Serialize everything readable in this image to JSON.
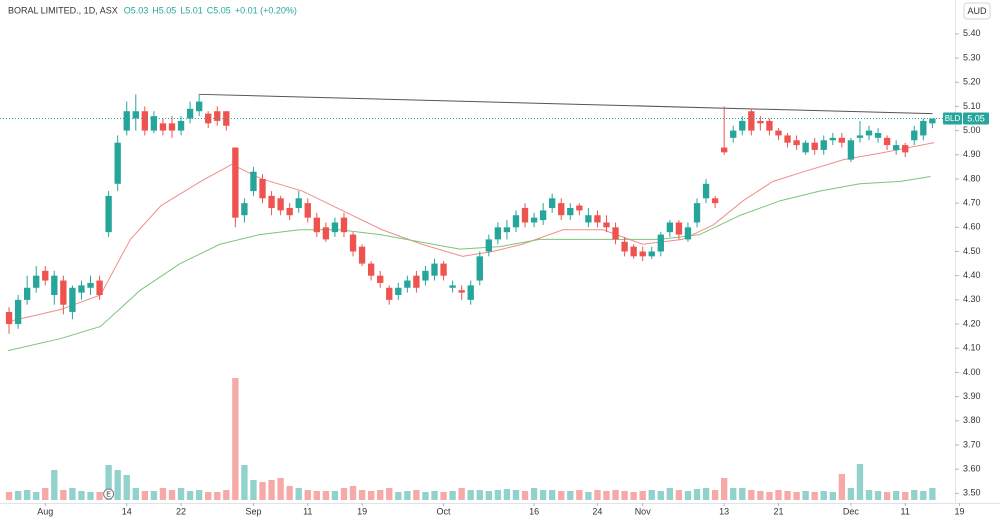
{
  "chart_data": {
    "type": "candlestick",
    "title": "BORAL LIMITED., 1D, ASX",
    "ohlc_texts": [
      "O5.03",
      "H5.05",
      "L5.01",
      "C5.05",
      "+0.01 (+0.20%)"
    ],
    "currency": "AUD",
    "symbol": "BLD",
    "last_label": "5.05",
    "event_marker": "E",
    "event_index": 11,
    "up_color": "#26a69a",
    "down_color": "#ef5350",
    "ylim": [
      3.46,
      5.54
    ],
    "xlim": [
      -1,
      104.5
    ],
    "yticks": [
      {
        "value": 3.5,
        "label": "3.50"
      },
      {
        "value": 3.6,
        "label": "3.60"
      },
      {
        "value": 3.7,
        "label": "3.70"
      },
      {
        "value": 3.8,
        "label": "3.80"
      },
      {
        "value": 3.9,
        "label": "3.90"
      },
      {
        "value": 4.0,
        "label": "4.00"
      },
      {
        "value": 4.1,
        "label": "4.10"
      },
      {
        "value": 4.2,
        "label": "4.20"
      },
      {
        "value": 4.3,
        "label": "4.30"
      },
      {
        "value": 4.4,
        "label": "4.40"
      },
      {
        "value": 4.5,
        "label": "4.50"
      },
      {
        "value": 4.6,
        "label": "4.60"
      },
      {
        "value": 4.7,
        "label": "4.70"
      },
      {
        "value": 4.8,
        "label": "4.80"
      },
      {
        "value": 4.9,
        "label": "4.90"
      },
      {
        "value": 5.0,
        "label": "5.00"
      },
      {
        "value": 5.1,
        "label": "5.10"
      },
      {
        "value": 5.2,
        "label": "5.20"
      },
      {
        "value": 5.3,
        "label": "5.30"
      },
      {
        "value": 5.4,
        "label": "5.40"
      }
    ],
    "xticks": [
      {
        "value": 4,
        "label": "Aug"
      },
      {
        "value": 13,
        "label": "14"
      },
      {
        "value": 19,
        "label": "22"
      },
      {
        "value": 27,
        "label": "Sep"
      },
      {
        "value": 33,
        "label": "11"
      },
      {
        "value": 39,
        "label": "19"
      },
      {
        "value": 48,
        "label": "Oct"
      },
      {
        "value": 58,
        "label": "16"
      },
      {
        "value": 65,
        "label": "24"
      },
      {
        "value": 70,
        "label": "Nov"
      },
      {
        "value": 79,
        "label": "13"
      },
      {
        "value": 85,
        "label": "21"
      },
      {
        "value": 93,
        "label": "Dec"
      },
      {
        "value": 99,
        "label": "11"
      },
      {
        "value": 105,
        "label": "19"
      }
    ],
    "candles": [
      [
        4.25,
        4.27,
        4.16,
        4.2
      ],
      [
        4.2,
        4.32,
        4.18,
        4.3
      ],
      [
        4.3,
        4.4,
        4.28,
        4.35
      ],
      [
        4.35,
        4.44,
        4.33,
        4.4
      ],
      [
        4.42,
        4.44,
        4.36,
        4.38
      ],
      [
        4.32,
        4.42,
        4.28,
        4.4
      ],
      [
        4.38,
        4.4,
        4.24,
        4.28
      ],
      [
        4.25,
        4.36,
        4.22,
        4.35
      ],
      [
        4.33,
        4.38,
        4.3,
        4.36
      ],
      [
        4.35,
        4.4,
        4.32,
        4.37
      ],
      [
        4.38,
        4.4,
        4.3,
        4.32
      ],
      [
        4.58,
        4.75,
        4.56,
        4.73
      ],
      [
        4.78,
        4.98,
        4.75,
        4.95
      ],
      [
        5.0,
        5.12,
        4.98,
        5.08
      ],
      [
        5.05,
        5.15,
        5.0,
        5.08
      ],
      [
        5.08,
        5.1,
        4.98,
        5.0
      ],
      [
        5.0,
        5.08,
        4.99,
        5.06
      ],
      [
        5.03,
        5.05,
        4.98,
        5.0
      ],
      [
        5.03,
        5.06,
        4.97,
        5.0
      ],
      [
        5.0,
        5.06,
        4.98,
        5.04
      ],
      [
        5.05,
        5.12,
        5.03,
        5.09
      ],
      [
        5.08,
        5.15,
        5.06,
        5.12
      ],
      [
        5.07,
        5.08,
        5.01,
        5.03
      ],
      [
        5.08,
        5.1,
        5.02,
        5.04
      ],
      [
        5.08,
        5.08,
        5.0,
        5.02
      ],
      [
        4.93,
        4.93,
        4.6,
        4.64
      ],
      [
        4.65,
        4.72,
        4.62,
        4.7
      ],
      [
        4.75,
        4.85,
        4.73,
        4.83
      ],
      [
        4.8,
        4.82,
        4.7,
        4.72
      ],
      [
        4.73,
        4.75,
        4.65,
        4.68
      ],
      [
        4.72,
        4.73,
        4.65,
        4.67
      ],
      [
        4.68,
        4.7,
        4.63,
        4.65
      ],
      [
        4.68,
        4.75,
        4.66,
        4.72
      ],
      [
        4.7,
        4.72,
        4.62,
        4.64
      ],
      [
        4.64,
        4.66,
        4.56,
        4.58
      ],
      [
        4.6,
        4.62,
        4.54,
        4.55
      ],
      [
        4.58,
        4.64,
        4.56,
        4.62
      ],
      [
        4.64,
        4.66,
        4.56,
        4.58
      ],
      [
        4.57,
        4.58,
        4.48,
        4.5
      ],
      [
        4.52,
        4.53,
        4.44,
        4.45
      ],
      [
        4.45,
        4.46,
        4.38,
        4.4
      ],
      [
        4.4,
        4.42,
        4.35,
        4.37
      ],
      [
        4.35,
        4.36,
        4.28,
        4.3
      ],
      [
        4.32,
        4.37,
        4.3,
        4.35
      ],
      [
        4.35,
        4.4,
        4.33,
        4.38
      ],
      [
        4.4,
        4.42,
        4.33,
        4.35
      ],
      [
        4.38,
        4.44,
        4.36,
        4.42
      ],
      [
        4.4,
        4.47,
        4.38,
        4.45
      ],
      [
        4.45,
        4.46,
        4.38,
        4.4
      ],
      [
        4.35,
        4.38,
        4.33,
        4.36
      ],
      [
        4.34,
        4.36,
        4.3,
        4.33
      ],
      [
        4.3,
        4.38,
        4.28,
        4.36
      ],
      [
        4.38,
        4.5,
        4.36,
        4.48
      ],
      [
        4.5,
        4.57,
        4.48,
        4.55
      ],
      [
        4.55,
        4.62,
        4.53,
        4.6
      ],
      [
        4.58,
        4.63,
        4.55,
        4.6
      ],
      [
        4.6,
        4.67,
        4.58,
        4.65
      ],
      [
        4.68,
        4.7,
        4.6,
        4.62
      ],
      [
        4.62,
        4.66,
        4.6,
        4.64
      ],
      [
        4.63,
        4.7,
        4.61,
        4.67
      ],
      [
        4.68,
        4.74,
        4.66,
        4.72
      ],
      [
        4.7,
        4.72,
        4.63,
        4.65
      ],
      [
        4.65,
        4.7,
        4.63,
        4.68
      ],
      [
        4.69,
        4.7,
        4.65,
        4.67
      ],
      [
        4.62,
        4.68,
        4.6,
        4.65
      ],
      [
        4.65,
        4.67,
        4.6,
        4.62
      ],
      [
        4.62,
        4.65,
        4.58,
        4.6
      ],
      [
        4.6,
        4.62,
        4.53,
        4.55
      ],
      [
        4.54,
        4.56,
        4.48,
        4.5
      ],
      [
        4.52,
        4.53,
        4.47,
        4.48
      ],
      [
        4.5,
        4.52,
        4.46,
        4.48
      ],
      [
        4.48,
        4.52,
        4.47,
        4.5
      ],
      [
        4.5,
        4.58,
        4.48,
        4.57
      ],
      [
        4.58,
        4.63,
        4.56,
        4.62
      ],
      [
        4.62,
        4.63,
        4.55,
        4.57
      ],
      [
        4.55,
        4.62,
        4.54,
        4.6
      ],
      [
        4.62,
        4.72,
        4.6,
        4.7
      ],
      [
        4.72,
        4.8,
        4.7,
        4.78
      ],
      [
        4.72,
        4.73,
        4.68,
        4.7
      ],
      [
        4.93,
        5.1,
        4.9,
        4.91
      ],
      [
        4.97,
        5.02,
        4.95,
        5.0
      ],
      [
        5.0,
        5.06,
        4.98,
        5.04
      ],
      [
        5.08,
        5.09,
        4.98,
        5.0
      ],
      [
        5.04,
        5.06,
        5.0,
        5.03
      ],
      [
        5.04,
        5.05,
        4.98,
        5.0
      ],
      [
        5.0,
        5.01,
        4.96,
        4.98
      ],
      [
        4.98,
        4.99,
        4.93,
        4.95
      ],
      [
        4.96,
        4.98,
        4.92,
        4.94
      ],
      [
        4.91,
        4.96,
        4.9,
        4.95
      ],
      [
        4.95,
        4.97,
        4.9,
        4.92
      ],
      [
        4.92,
        4.98,
        4.9,
        4.96
      ],
      [
        4.96,
        4.99,
        4.94,
        4.97
      ],
      [
        4.97,
        4.99,
        4.93,
        4.95
      ],
      [
        4.88,
        4.97,
        4.87,
        4.96
      ],
      [
        4.97,
        5.04,
        4.95,
        4.98
      ],
      [
        4.98,
        5.02,
        4.96,
        5.0
      ],
      [
        4.97,
        5.01,
        4.95,
        4.99
      ],
      [
        4.97,
        4.98,
        4.92,
        4.94
      ],
      [
        4.92,
        4.96,
        4.9,
        4.94
      ],
      [
        4.94,
        4.95,
        4.89,
        4.91
      ],
      [
        4.96,
        5.02,
        4.94,
        5.0
      ],
      [
        4.98,
        5.05,
        4.96,
        5.04
      ],
      [
        5.03,
        5.05,
        5.01,
        5.05
      ]
    ],
    "volume_lim": [
      0,
      130
    ],
    "volume": [
      8,
      9,
      10,
      8,
      12,
      30,
      10,
      12,
      9,
      8,
      8,
      35,
      30,
      25,
      12,
      9,
      9,
      12,
      10,
      12,
      9,
      10,
      8,
      8,
      10,
      122,
      35,
      20,
      18,
      20,
      22,
      14,
      12,
      10,
      9,
      9,
      9,
      12,
      14,
      10,
      9,
      10,
      12,
      8,
      9,
      10,
      8,
      9,
      8,
      9,
      12,
      10,
      10,
      9,
      10,
      11,
      10,
      9,
      12,
      10,
      10,
      9,
      9,
      10,
      8,
      10,
      9,
      10,
      9,
      8,
      9,
      10,
      9,
      12,
      10,
      9,
      11,
      12,
      10,
      22,
      12,
      12,
      10,
      9,
      8,
      10,
      9,
      8,
      9,
      8,
      9,
      8,
      26,
      12,
      36,
      10,
      9,
      8,
      9,
      8,
      10,
      9,
      12
    ],
    "moving_averages": [
      {
        "color": "#f28c8c",
        "x": [
          -0.1,
          5.7,
          10.1,
          13.4,
          16.8,
          21.2,
          24.6,
          27.9,
          32.4,
          36.8,
          41.2,
          45.6,
          50.1,
          53.4,
          56.7,
          61.2,
          65.6,
          70.0,
          74.4,
          77.8,
          81.1,
          84.4,
          87.8,
          92.2,
          96.7,
          102.2
        ],
        "values": [
          4.21,
          4.26,
          4.32,
          4.55,
          4.69,
          4.79,
          4.86,
          4.8,
          4.75,
          4.67,
          4.59,
          4.53,
          4.48,
          4.5,
          4.53,
          4.59,
          4.59,
          4.53,
          4.55,
          4.61,
          4.71,
          4.79,
          4.83,
          4.88,
          4.91,
          4.95
        ]
      },
      {
        "color": "#7cc47c",
        "x": [
          -0.1,
          5.7,
          10.1,
          14.5,
          18.9,
          23.3,
          27.7,
          32.1,
          36.5,
          41.0,
          45.4,
          49.8,
          54.2,
          58.6,
          63.1,
          67.5,
          71.9,
          76.3,
          80.8,
          85.2,
          89.6,
          94.0,
          98.5,
          101.8
        ],
        "values": [
          4.09,
          4.14,
          4.19,
          4.34,
          4.45,
          4.53,
          4.57,
          4.59,
          4.59,
          4.57,
          4.54,
          4.51,
          4.52,
          4.55,
          4.55,
          4.55,
          4.55,
          4.57,
          4.65,
          4.71,
          4.75,
          4.78,
          4.79,
          4.81
        ]
      }
    ],
    "trend_line": {
      "x": [
        21,
        102
      ],
      "values": [
        5.15,
        5.07
      ]
    }
  }
}
